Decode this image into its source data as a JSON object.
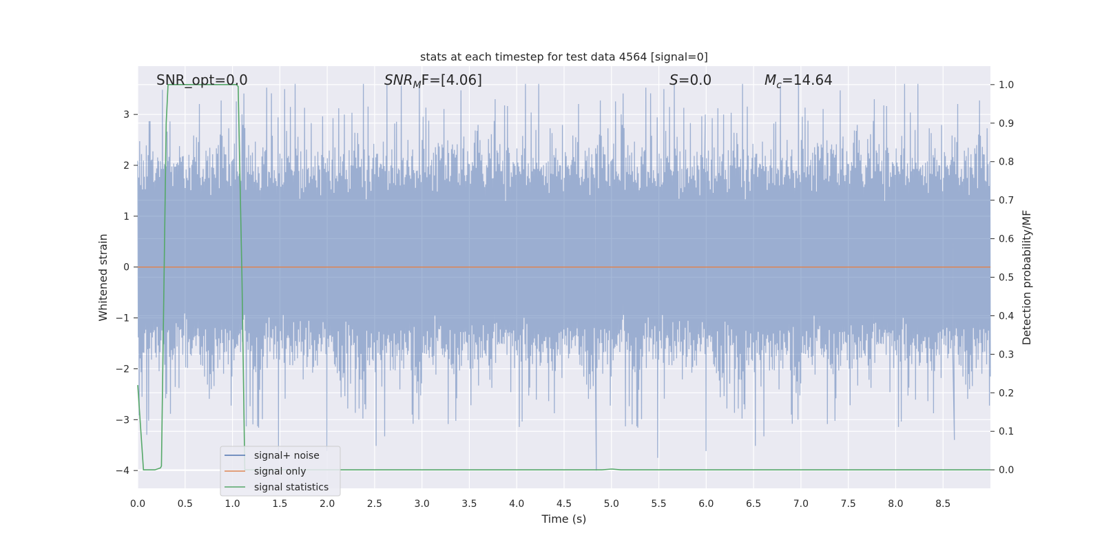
{
  "chart_data": {
    "type": "line",
    "title": "stats at each timestep for test data 4564 [signal=0]",
    "xlabel": "Time (s)",
    "ylabel": "Whitened strain",
    "y2label": "Detection probability/MF",
    "xlim": [
      0.0,
      9.0
    ],
    "ylim": [
      -4.35,
      3.95
    ],
    "y2lim": [
      -0.048,
      1.048
    ],
    "x_ticks": [
      0.0,
      0.5,
      1.0,
      1.5,
      2.0,
      2.5,
      3.0,
      3.5,
      4.0,
      4.5,
      5.0,
      5.5,
      6.0,
      6.5,
      7.0,
      7.5,
      8.0,
      8.5
    ],
    "x_tick_labels": [
      "0.0",
      "0.5",
      "1.0",
      "1.5",
      "2.0",
      "2.5",
      "3.0",
      "3.5",
      "4.0",
      "4.5",
      "5.0",
      "5.5",
      "6.0",
      "6.5",
      "7.0",
      "7.5",
      "8.0",
      "8.5"
    ],
    "y_ticks": [
      3,
      2,
      1,
      0,
      -1,
      -2,
      -3,
      -4
    ],
    "y_tick_labels": [
      "3",
      "2",
      "1",
      "0",
      "−1",
      "−2",
      "−3",
      "−4"
    ],
    "y2_ticks": [
      1.0,
      0.9,
      0.8,
      0.7,
      0.6,
      0.5,
      0.4,
      0.3,
      0.2,
      0.1,
      0.0
    ],
    "y2_tick_labels": [
      "1.0",
      "0.9",
      "0.8",
      "0.7",
      "0.6",
      "0.5",
      "0.4",
      "0.3",
      "0.2",
      "0.1",
      "0.0"
    ],
    "grid": true,
    "legend_position": "lower-left",
    "noise": {
      "sample_count": 1800,
      "amplitude_range": [
        -4.0,
        3.6
      ],
      "typical_envelope": [
        -1.7,
        2.1
      ],
      "seed": 4564
    },
    "series": [
      {
        "name": "signal+ noise",
        "color": "#4c72b0",
        "axis": "left",
        "style": "noisy-strain",
        "notable_extremes": [
          {
            "x": 2.63,
            "y": 3.6
          },
          {
            "x": 5.99,
            "y": 3.0
          },
          {
            "x": 4.84,
            "y": -4.0
          },
          {
            "x": 8.62,
            "y": -3.4
          }
        ]
      },
      {
        "name": "signal only",
        "color": "#dd8452",
        "axis": "left",
        "x": [
          0.0,
          9.0
        ],
        "y": [
          0.0,
          0.0
        ]
      },
      {
        "name": "signal statistics",
        "color": "#55a868",
        "axis": "right",
        "x": [
          0.0,
          0.06,
          0.18,
          0.24,
          0.25,
          0.3,
          0.32,
          0.45,
          1.04,
          1.06,
          1.1,
          1.13,
          1.2,
          4.8,
          4.9,
          5.0,
          5.1,
          9.0
        ],
        "y": [
          0.22,
          0.0,
          0.0,
          0.005,
          0.01,
          0.9,
          1.0,
          1.0,
          1.0,
          0.995,
          0.5,
          0.0,
          0.0,
          0.0,
          0.0,
          0.002,
          0.0,
          0.0
        ]
      }
    ],
    "annotations": [
      {
        "name": "snr-opt",
        "text": "SNR_opt=0.0"
      },
      {
        "name": "snr-mf",
        "base": "SNR",
        "sub": "M",
        "rest": "F=[4.06]"
      },
      {
        "name": "s-stat",
        "base": "S",
        "rest": "=0.0"
      },
      {
        "name": "chirp-mass",
        "base": "M",
        "sub": "c",
        "rest": "=14.64"
      }
    ]
  }
}
